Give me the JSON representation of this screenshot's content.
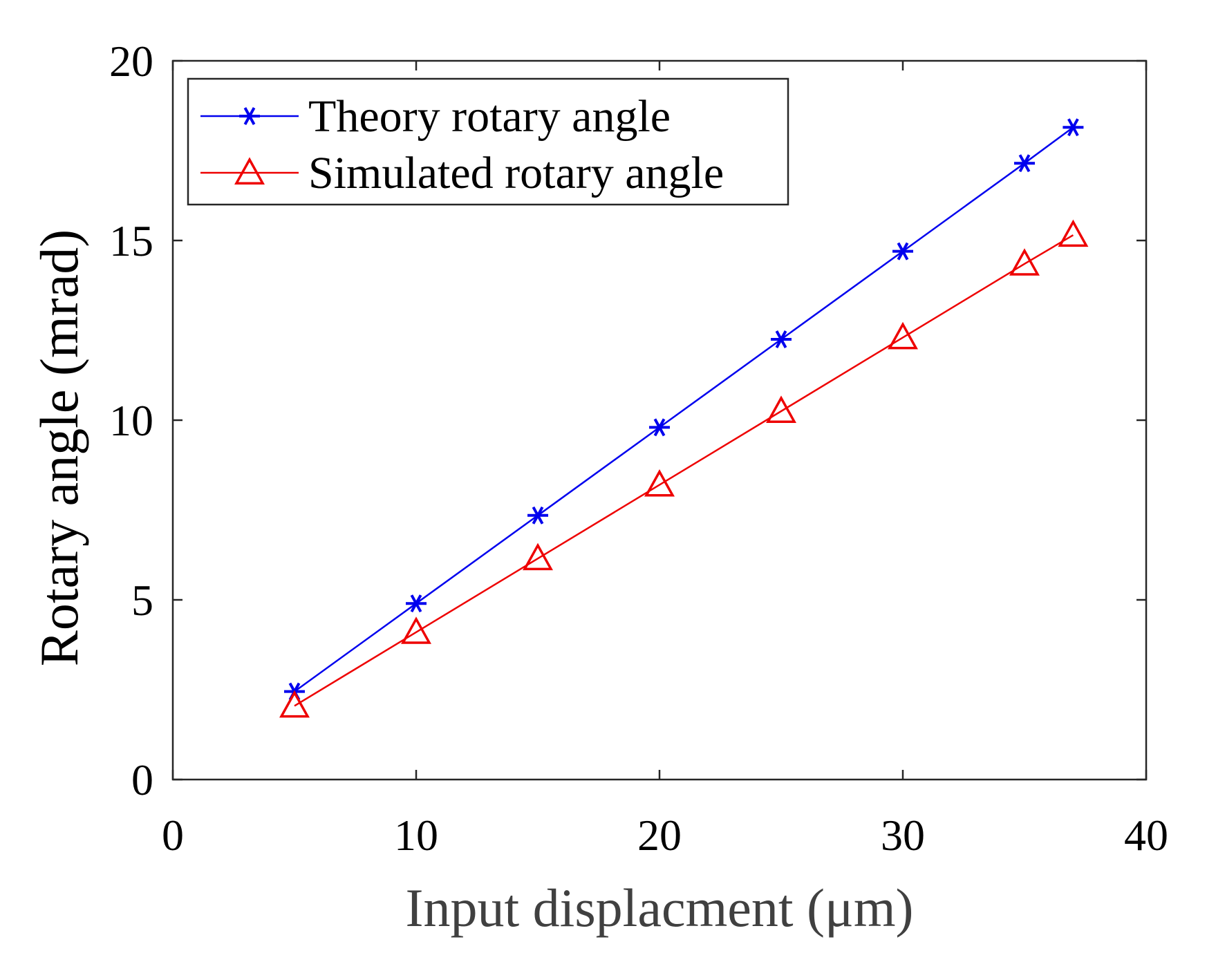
{
  "chart_data": {
    "type": "line",
    "title": "",
    "xlabel": "Input displacment (μm)",
    "ylabel": "Rotary angle (mrad)",
    "xlim": [
      0,
      40
    ],
    "ylim": [
      0,
      20
    ],
    "xticks": [
      0,
      10,
      20,
      30,
      40
    ],
    "yticks": [
      0,
      5,
      10,
      15,
      20
    ],
    "grid": false,
    "legend_position": "top-left",
    "series": [
      {
        "name": "Theory rotary angle",
        "color": "#0000ee",
        "marker": "asterisk",
        "x": [
          5,
          10,
          15,
          20,
          25,
          30,
          35,
          37
        ],
        "y": [
          2.45,
          4.9,
          7.35,
          9.8,
          12.25,
          14.7,
          17.15,
          18.15
        ]
      },
      {
        "name": "Simulated rotary angle",
        "color": "#ee0000",
        "marker": "triangle",
        "x": [
          5,
          10,
          15,
          20,
          25,
          30,
          35,
          37
        ],
        "y": [
          2.05,
          4.1,
          6.15,
          8.2,
          10.25,
          12.3,
          14.35,
          15.15
        ]
      }
    ]
  }
}
